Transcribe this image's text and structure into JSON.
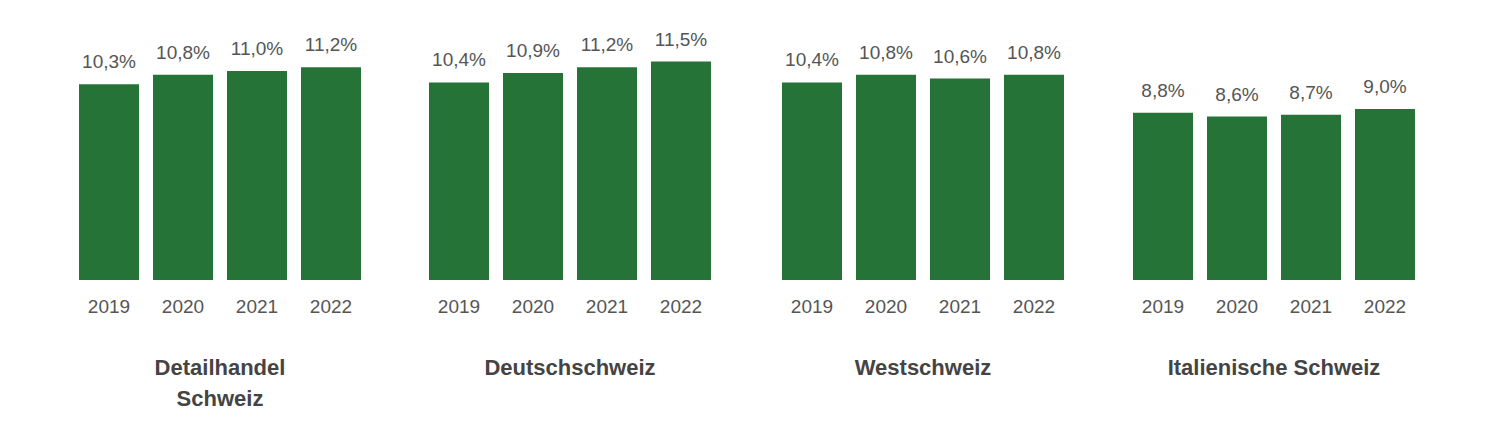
{
  "chart_data": [
    {
      "type": "bar",
      "title": "Detailhandel Schweiz",
      "categories": [
        "2019",
        "2020",
        "2021",
        "2022"
      ],
      "values": [
        10.3,
        10.8,
        11.0,
        11.2
      ],
      "value_labels": [
        "10,3%",
        "10,8%",
        "11,0%",
        "11,2%"
      ],
      "color": "#267337",
      "ylim": [
        0,
        14
      ],
      "data_labels": true,
      "tick_labels": "x",
      "grid": false
    },
    {
      "type": "bar",
      "title": "Deutschschweiz",
      "categories": [
        "2019",
        "2020",
        "2021",
        "2022"
      ],
      "values": [
        10.4,
        10.9,
        11.2,
        11.5
      ],
      "value_labels": [
        "10,4%",
        "10,9%",
        "11,2%",
        "11,5%"
      ],
      "color": "#267337",
      "ylim": [
        0,
        14
      ],
      "data_labels": true,
      "tick_labels": "x",
      "grid": false
    },
    {
      "type": "bar",
      "title": "Westschweiz",
      "categories": [
        "2019",
        "2020",
        "2021",
        "2022"
      ],
      "values": [
        10.4,
        10.8,
        10.6,
        10.8
      ],
      "value_labels": [
        "10,4%",
        "10,8%",
        "10,6%",
        "10,8%"
      ],
      "color": "#267337",
      "ylim": [
        0,
        14
      ],
      "data_labels": true,
      "tick_labels": "x",
      "grid": false
    },
    {
      "type": "bar",
      "title": "Italienische Schweiz",
      "categories": [
        "2019",
        "2020",
        "2021",
        "2022"
      ],
      "values": [
        8.8,
        8.6,
        8.7,
        9.0
      ],
      "value_labels": [
        "8,8%",
        "8,6%",
        "8,7%",
        "9,0%"
      ],
      "color": "#267337",
      "ylim": [
        0,
        14
      ],
      "data_labels": true,
      "tick_labels": "x",
      "grid": false
    }
  ]
}
